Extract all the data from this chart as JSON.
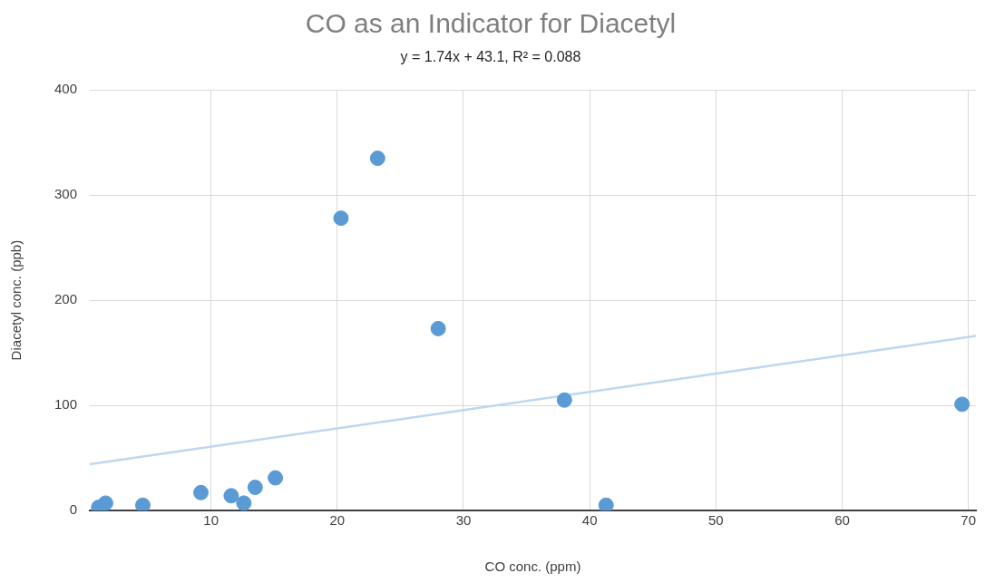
{
  "chart_data": {
    "type": "scatter",
    "title": "CO as an Indicator for Diacetyl",
    "subtitle": "y = 1.74x + 43.1, R² = 0.088",
    "xlabel": "CO conc. (ppm)",
    "ylabel": "Diacetyl conc. (ppb)",
    "xlim": [
      0.4,
      70.6
    ],
    "xticks": [
      10,
      20,
      30,
      40,
      50,
      60,
      70
    ],
    "ylim": [
      0,
      400
    ],
    "yticks": [
      0,
      100,
      200,
      300,
      400
    ],
    "grid": true,
    "legend": false,
    "marker": "circle",
    "series": [
      {
        "color": "#5b9bd5",
        "x": [
          1.1,
          1.65,
          4.6,
          9.2,
          11.6,
          12.6,
          13.5,
          15.1,
          20.3,
          23.2,
          28.0,
          38.0,
          41.3,
          69.5
        ],
        "values": [
          3,
          7,
          5,
          17,
          14,
          7,
          22,
          31,
          278,
          335,
          173,
          105,
          5,
          101
        ]
      },
      {
        "type": "line",
        "color": "#bdd7ee",
        "x": [
          0.4,
          70.6
        ],
        "values": [
          44,
          166
        ],
        "marker": "none"
      }
    ]
  }
}
